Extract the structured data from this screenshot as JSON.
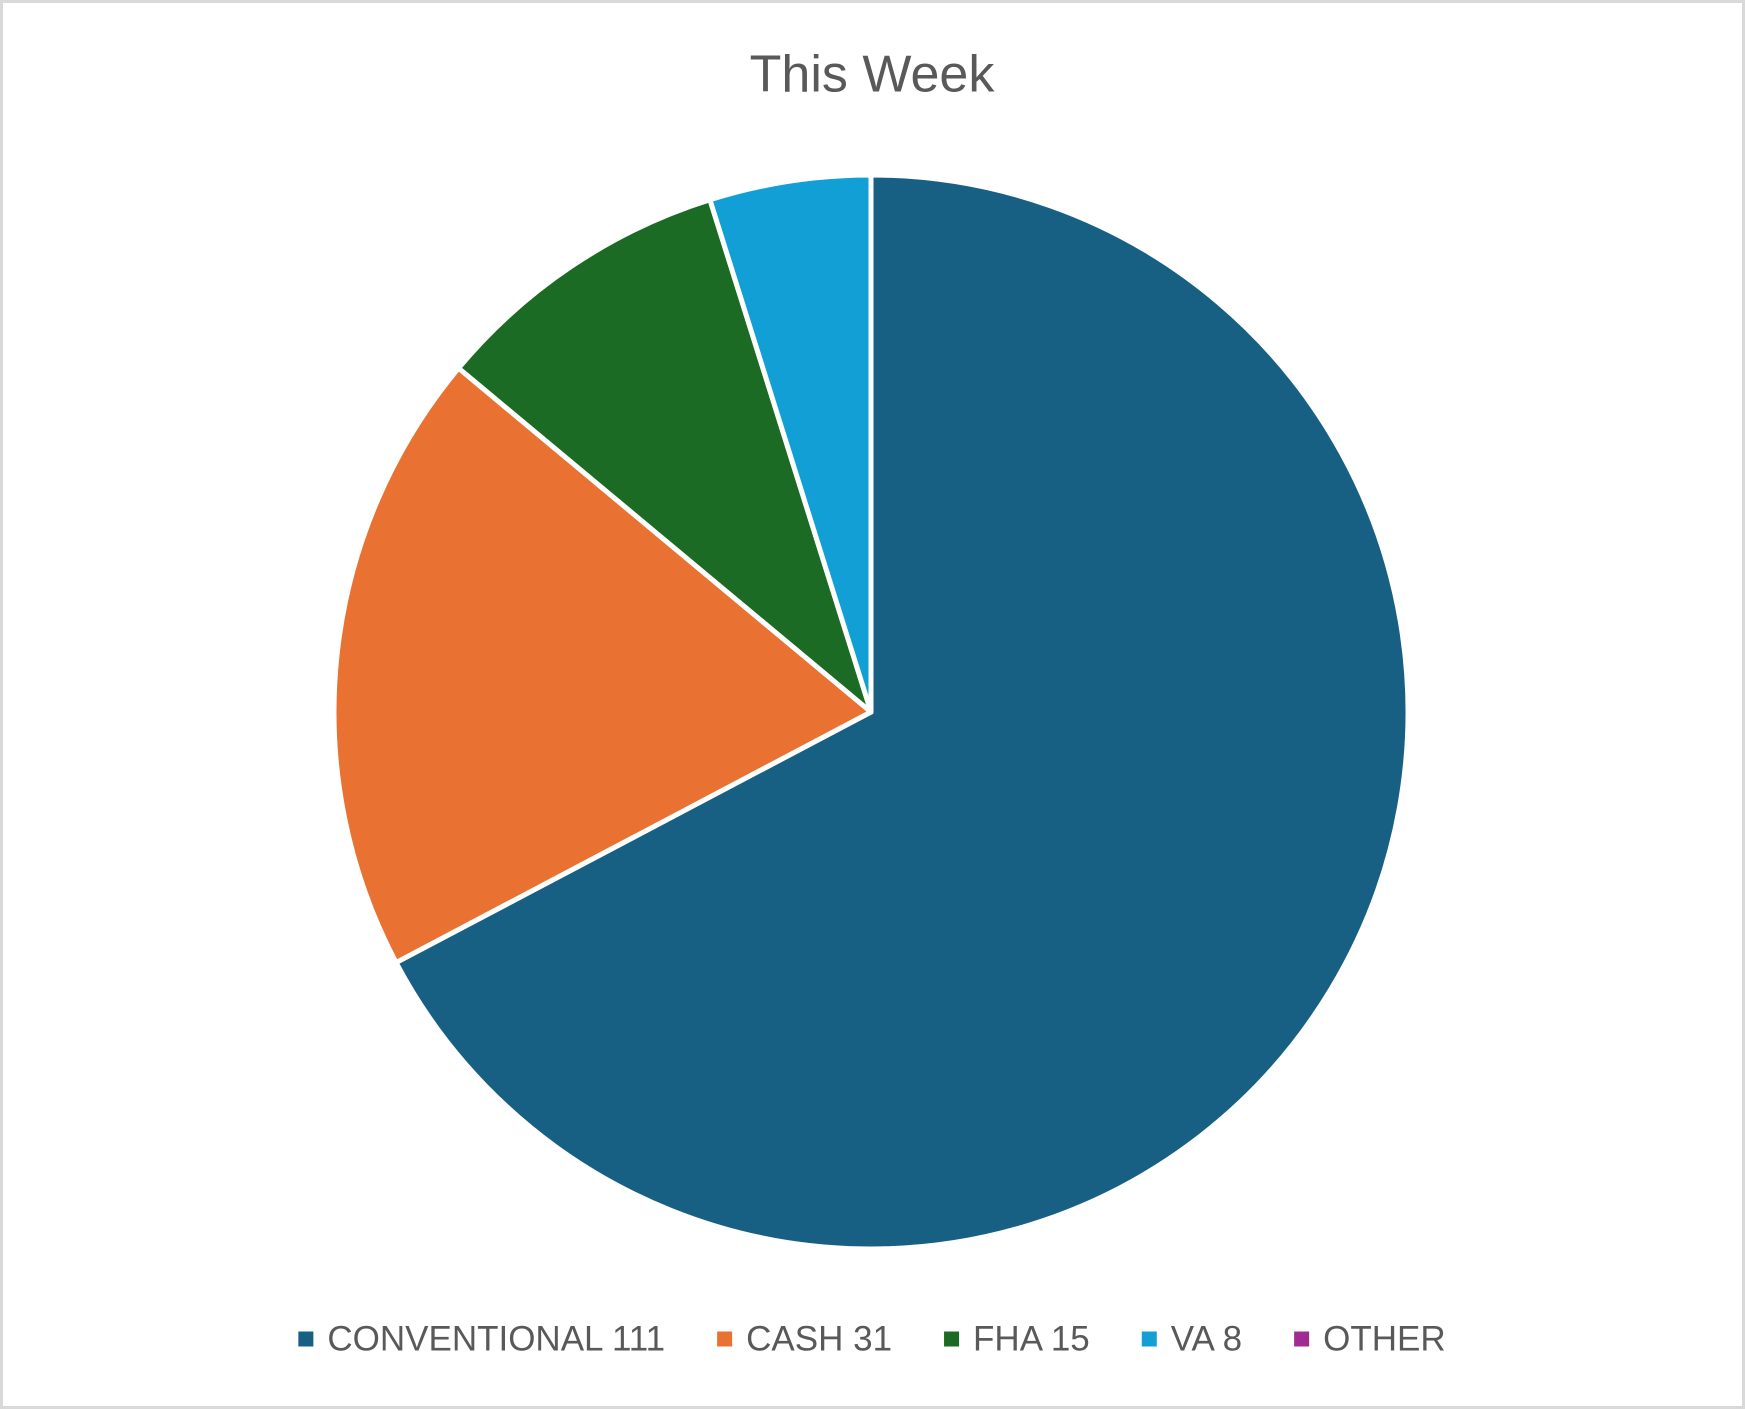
{
  "chart_data": {
    "type": "pie",
    "title": "This Week",
    "categories": [
      "CONVENTIONAL 111",
      "CASH 31",
      "FHA 15",
      "VA 8",
      "OTHER"
    ],
    "values": [
      111,
      31,
      15,
      8,
      0
    ],
    "colors": [
      "#176083",
      "#e97132",
      "#1b6b24",
      "#119fd6",
      "#a02b93"
    ],
    "legend": "bottom"
  }
}
